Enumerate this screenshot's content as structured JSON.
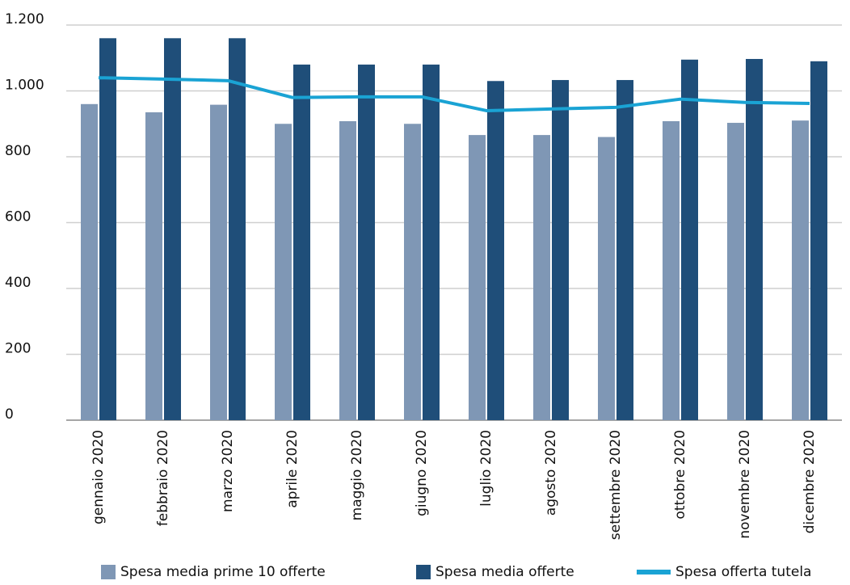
{
  "chart_data": {
    "type": "bar_line",
    "categories": [
      "gennaio 2020",
      "febbraio 2020",
      "marzo 2020",
      "aprile 2020",
      "maggio 2020",
      "giugno 2020",
      "luglio 2020",
      "agosto 2020",
      "settembre 2020",
      "ottobre 2020",
      "novembre 2020",
      "dicembre 2020"
    ],
    "series": [
      {
        "name": "Spesa media prime 10 offerte",
        "type": "bar",
        "color": "#7f97b5",
        "values": [
          960,
          935,
          958,
          900,
          908,
          900,
          866,
          866,
          860,
          908,
          903,
          910
        ]
      },
      {
        "name": "Spesa media offerte",
        "type": "bar",
        "color": "#1f4e79",
        "values": [
          1160,
          1160,
          1160,
          1080,
          1080,
          1080,
          1030,
          1033,
          1033,
          1095,
          1097,
          1090
        ]
      },
      {
        "name": "Spesa offerta tutela",
        "type": "line",
        "color": "#1aa3d4",
        "values": [
          1040,
          1036,
          1031,
          980,
          982,
          982,
          940,
          945,
          950,
          975,
          965,
          962
        ]
      }
    ],
    "ylim": [
      0,
      1200
    ],
    "yticks": [
      0,
      200,
      400,
      600,
      800,
      {
        "value": 1000,
        "label": "1.000"
      },
      {
        "value": 1200,
        "label": "1.200"
      }
    ],
    "grid": true,
    "legend": "bottom"
  }
}
